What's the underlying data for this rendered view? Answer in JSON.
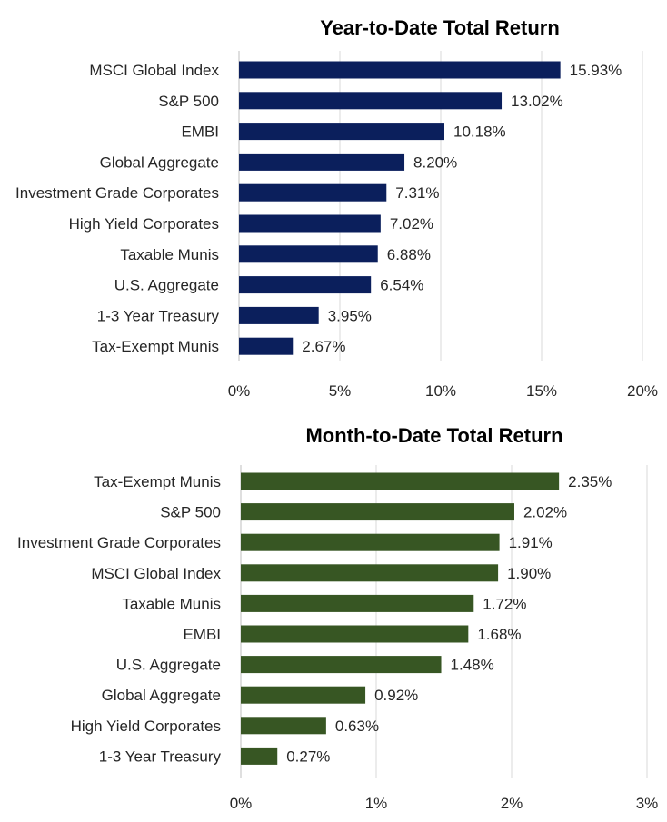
{
  "chart_data": [
    {
      "type": "bar",
      "orientation": "horizontal",
      "title": "Year-to-Date Total Return",
      "categories": [
        "MSCI Global Index",
        "S&P 500",
        "EMBI",
        "Global Aggregate",
        "Investment Grade Corporates",
        "High Yield Corporates",
        "Taxable Munis",
        "U.S. Aggregate",
        "1-3 Year Treasury",
        "Tax-Exempt Munis"
      ],
      "values": [
        15.93,
        13.02,
        10.18,
        8.2,
        7.31,
        7.02,
        6.88,
        6.54,
        3.95,
        2.67
      ],
      "data_labels": [
        "15.93%",
        "13.02%",
        "10.18%",
        "8.20%",
        "7.31%",
        "7.02%",
        "6.88%",
        "6.54%",
        "3.95%",
        "2.67%"
      ],
      "xlim": [
        0,
        20
      ],
      "xticks": [
        0,
        5,
        10,
        15,
        20
      ],
      "xtick_labels": [
        "0%",
        "5%",
        "10%",
        "15%",
        "20%"
      ],
      "color": "#0b1f5c",
      "grid": true
    },
    {
      "type": "bar",
      "orientation": "horizontal",
      "title": "Month-to-Date Total Return",
      "categories": [
        "Tax-Exempt Munis",
        "S&P 500",
        "Investment Grade Corporates",
        "MSCI Global Index",
        "Taxable Munis",
        "EMBI",
        "U.S. Aggregate",
        "Global Aggregate",
        "High Yield Corporates",
        "1-3 Year Treasury"
      ],
      "values": [
        2.35,
        2.02,
        1.91,
        1.9,
        1.72,
        1.68,
        1.48,
        0.92,
        0.63,
        0.27
      ],
      "data_labels": [
        "2.35%",
        "2.02%",
        "1.91%",
        "1.90%",
        "1.72%",
        "1.68%",
        "1.48%",
        "0.92%",
        "0.63%",
        "0.27%"
      ],
      "xlim": [
        0,
        3
      ],
      "xticks": [
        0,
        1,
        2,
        3
      ],
      "xtick_labels": [
        "0%",
        "1%",
        "2%",
        "3%"
      ],
      "color": "#375623",
      "grid": true
    }
  ]
}
